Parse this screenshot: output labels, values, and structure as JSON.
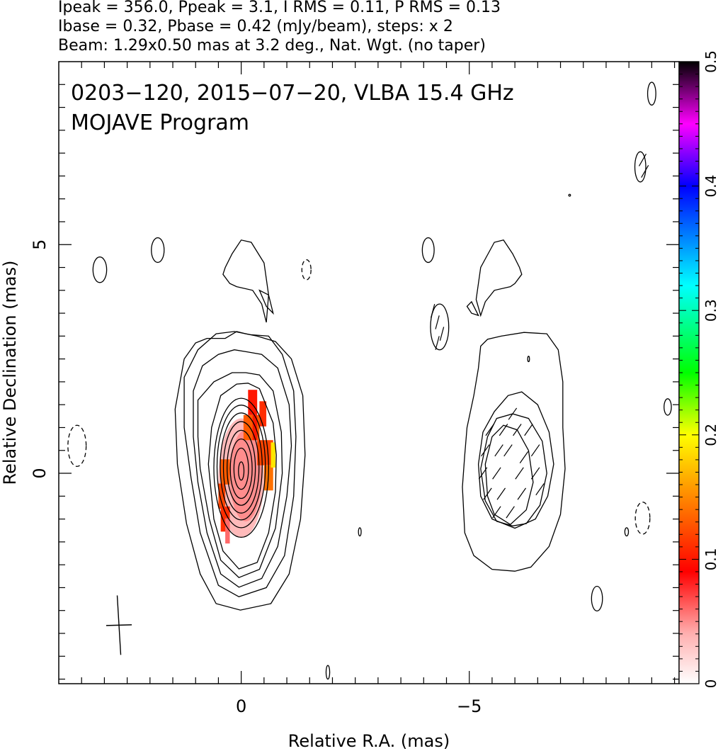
{
  "header": {
    "line1": "Ipeak = 356.0, Ppeak = 3.1, I RMS = 0.11, P RMS = 0.13",
    "line2": "Ibase = 0.32, Pbase = 0.42 (mJy/beam), steps: x 2",
    "line3": "Beam: 1.29x0.50 mas at 3.2 deg., Nat. Wgt. (no taper)"
  },
  "chart_data": {
    "type": "heatmap",
    "title_line1": "0203−120, 2015−07−20, VLBA 15.4 GHz",
    "title_line2": "MOJAVE Program",
    "xlabel": "Relative R.A. (mas)",
    "ylabel": "Relative Declination (mas)",
    "xlim": [
      4.0,
      -9.6
    ],
    "ylim": [
      -4.6,
      9.0
    ],
    "x_ticks": [
      {
        "v": 0,
        "label": "0"
      },
      {
        "v": -5,
        "label": "−5"
      }
    ],
    "y_ticks": [
      {
        "v": 0,
        "label": "0"
      },
      {
        "v": 5,
        "label": "5"
      }
    ],
    "colorbar": {
      "range": [
        0,
        0.5
      ],
      "ticks": [
        {
          "v": 0,
          "label": "0"
        },
        {
          "v": 0.1,
          "label": "0.1"
        },
        {
          "v": 0.2,
          "label": "0.2"
        },
        {
          "v": 0.3,
          "label": "0.3"
        },
        {
          "v": 0.4,
          "label": "0.4"
        },
        {
          "v": 0.5,
          "label": "0.5"
        }
      ],
      "stops": [
        {
          "v": 0.0,
          "color": "#ffffff"
        },
        {
          "v": 0.04,
          "color": "#ffb0b0"
        },
        {
          "v": 0.09,
          "color": "#ff0000"
        },
        {
          "v": 0.15,
          "color": "#ff8800"
        },
        {
          "v": 0.2,
          "color": "#ffff00"
        },
        {
          "v": 0.25,
          "color": "#00ff00"
        },
        {
          "v": 0.32,
          "color": "#00ffff"
        },
        {
          "v": 0.4,
          "color": "#0000ff"
        },
        {
          "v": 0.45,
          "color": "#ff00ff"
        },
        {
          "v": 0.5,
          "color": "#000000"
        }
      ]
    },
    "contours": {
      "core_ellipses": [
        {
          "cx": 0.0,
          "cy": 0.05,
          "rx": 0.06,
          "ry": 0.2
        },
        {
          "cx": 0.0,
          "cy": 0.1,
          "rx": 0.16,
          "ry": 0.45
        },
        {
          "cx": 0.0,
          "cy": 0.1,
          "rx": 0.24,
          "ry": 0.65
        },
        {
          "cx": 0.0,
          "cy": 0.12,
          "rx": 0.31,
          "ry": 0.82
        },
        {
          "cx": 0.0,
          "cy": 0.13,
          "rx": 0.39,
          "ry": 1.0
        },
        {
          "cx": 0.0,
          "cy": 0.15,
          "rx": 0.46,
          "ry": 1.17
        },
        {
          "cx": 0.0,
          "cy": 0.15,
          "rx": 0.53,
          "ry": 1.34
        },
        {
          "cx": 0.0,
          "cy": 0.12,
          "rx": 0.6,
          "ry": 1.52
        }
      ],
      "core_paths": [
        [
          [
            0.05,
            -2.09
          ],
          [
            -0.35,
            -1.95
          ],
          [
            -0.6,
            -1.3
          ],
          [
            -0.75,
            -0.4
          ],
          [
            -0.77,
            0.4
          ],
          [
            -0.7,
            1.1
          ],
          [
            -0.4,
            1.85
          ],
          [
            -0.15,
            1.97
          ],
          [
            0.1,
            1.95
          ],
          [
            0.45,
            1.7
          ],
          [
            0.65,
            1.0
          ],
          [
            0.72,
            0.2
          ],
          [
            0.6,
            -1.0
          ],
          [
            0.4,
            -1.7
          ],
          [
            0.05,
            -2.09
          ]
        ],
        [
          [
            0.05,
            -2.28
          ],
          [
            -0.4,
            -2.1
          ],
          [
            -0.75,
            -1.2
          ],
          [
            -0.9,
            0.0
          ],
          [
            -0.88,
            0.9
          ],
          [
            -0.7,
            1.8
          ],
          [
            -0.4,
            2.15
          ],
          [
            -0.1,
            2.2
          ],
          [
            0.2,
            2.2
          ],
          [
            0.6,
            2.0
          ],
          [
            0.95,
            1.6
          ],
          [
            0.95,
            0.8
          ],
          [
            0.9,
            0.1
          ],
          [
            0.7,
            -1.0
          ],
          [
            0.45,
            -1.9
          ],
          [
            0.05,
            -2.28
          ]
        ],
        [
          [
            0.05,
            -2.49
          ],
          [
            -0.45,
            -2.3
          ],
          [
            -0.8,
            -1.6
          ],
          [
            -1.0,
            -0.5
          ],
          [
            -1.1,
            0.6
          ],
          [
            -1.05,
            1.5
          ],
          [
            -0.8,
            2.3
          ],
          [
            -0.45,
            2.6
          ],
          [
            -0.15,
            2.65
          ],
          [
            0.15,
            2.7
          ],
          [
            0.5,
            2.6
          ],
          [
            0.85,
            2.35
          ],
          [
            1.05,
            1.8
          ],
          [
            1.05,
            0.8
          ],
          [
            0.95,
            -0.2
          ],
          [
            0.75,
            -1.3
          ],
          [
            0.45,
            -2.2
          ],
          [
            0.05,
            -2.49
          ]
        ],
        [
          [
            0.05,
            -2.7
          ],
          [
            -0.55,
            -2.5
          ],
          [
            -0.95,
            -1.8
          ],
          [
            -1.15,
            -0.5
          ],
          [
            -1.2,
            0.8
          ],
          [
            -1.15,
            1.8
          ],
          [
            -0.9,
            2.6
          ],
          [
            -0.6,
            3.0
          ],
          [
            -0.2,
            3.03
          ],
          [
            0.15,
            3.1
          ],
          [
            0.55,
            3.05
          ],
          [
            0.95,
            2.7
          ],
          [
            1.25,
            2.1
          ],
          [
            1.25,
            1.0
          ],
          [
            1.1,
            -0.1
          ],
          [
            0.9,
            -1.3
          ],
          [
            0.5,
            -2.45
          ],
          [
            0.05,
            -2.7
          ]
        ],
        [
          [
            0.02,
            -2.99
          ],
          [
            -0.65,
            -2.85
          ],
          [
            -1.05,
            -2.2
          ],
          [
            -1.3,
            -1.0
          ],
          [
            -1.4,
            0.4
          ],
          [
            -1.35,
            1.7
          ],
          [
            -1.1,
            2.5
          ],
          [
            -0.75,
            2.88
          ],
          [
            -0.35,
            3.0
          ],
          [
            -0.1,
            3.05
          ],
          [
            0.1,
            3.1
          ],
          [
            0.35,
            2.95
          ],
          [
            0.75,
            2.95
          ],
          [
            1.0,
            2.85
          ],
          [
            1.25,
            2.5
          ],
          [
            1.45,
            1.4
          ],
          [
            1.4,
            0.2
          ],
          [
            1.2,
            -1.1
          ],
          [
            0.9,
            -2.2
          ],
          [
            0.55,
            -2.85
          ],
          [
            0.02,
            -2.99
          ]
        ],
        [
          [
            0.1,
            4.08
          ],
          [
            -0.25,
            4.0
          ],
          [
            -0.45,
            3.7
          ],
          [
            -0.55,
            3.3
          ],
          [
            -0.6,
            3.9
          ],
          [
            -0.5,
            4.6
          ],
          [
            -0.22,
            5.05
          ],
          [
            0.0,
            5.1
          ],
          [
            0.2,
            4.8
          ],
          [
            0.35,
            4.5
          ],
          [
            0.4,
            4.35
          ],
          [
            0.25,
            4.15
          ],
          [
            0.1,
            4.08
          ]
        ],
        [
          [
            -0.4,
            4.0
          ],
          [
            -0.55,
            3.65
          ],
          [
            -0.7,
            3.5
          ],
          [
            -0.6,
            3.9
          ],
          [
            -0.4,
            4.0
          ]
        ]
      ],
      "jet_paths": [
        [
          [
            -5.9,
            -1.12
          ],
          [
            -5.55,
            -0.9
          ],
          [
            -5.4,
            -0.5
          ],
          [
            -5.35,
            0.2
          ],
          [
            -5.5,
            0.8
          ],
          [
            -5.75,
            1.05
          ],
          [
            -6.05,
            0.95
          ],
          [
            -6.3,
            0.5
          ],
          [
            -6.4,
            -0.2
          ],
          [
            -6.25,
            -0.8
          ],
          [
            -5.9,
            -1.12
          ]
        ],
        [
          [
            -5.95,
            -1.15
          ],
          [
            -6.25,
            -1.1
          ],
          [
            -6.55,
            -0.7
          ],
          [
            -6.7,
            0.0
          ],
          [
            -6.6,
            0.7
          ],
          [
            -6.3,
            1.2
          ],
          [
            -5.95,
            1.3
          ],
          [
            -5.6,
            1.2
          ],
          [
            -5.4,
            0.8
          ],
          [
            -5.25,
            0.1
          ],
          [
            -5.35,
            -0.6
          ],
          [
            -5.6,
            -1.05
          ],
          [
            -5.95,
            -1.15
          ]
        ],
        [
          [
            -6.0,
            -1.2
          ],
          [
            -6.45,
            -1.0
          ],
          [
            -6.72,
            -0.5
          ],
          [
            -6.85,
            0.2
          ],
          [
            -6.75,
            0.9
          ],
          [
            -6.5,
            1.5
          ],
          [
            -6.15,
            1.78
          ],
          [
            -5.85,
            1.7
          ],
          [
            -5.55,
            1.35
          ],
          [
            -5.3,
            0.9
          ],
          [
            -5.2,
            0.2
          ],
          [
            -5.25,
            -0.5
          ],
          [
            -5.5,
            -1.0
          ],
          [
            -6.0,
            -1.2
          ]
        ],
        [
          [
            -6.0,
            -2.14
          ],
          [
            -5.5,
            -2.1
          ],
          [
            -5.1,
            -1.8
          ],
          [
            -4.9,
            -1.3
          ],
          [
            -4.85,
            -0.3
          ],
          [
            -4.9,
            0.4
          ],
          [
            -4.95,
            1.0
          ],
          [
            -5.1,
            1.7
          ],
          [
            -5.2,
            2.3
          ],
          [
            -5.25,
            2.78
          ],
          [
            -5.4,
            2.93
          ],
          [
            -5.7,
            3.0
          ],
          [
            -6.2,
            3.08
          ],
          [
            -6.7,
            3.05
          ],
          [
            -6.95,
            2.7
          ],
          [
            -7.05,
            2.0
          ],
          [
            -7.05,
            1.0
          ],
          [
            -7.1,
            0.1
          ],
          [
            -7.0,
            -0.9
          ],
          [
            -6.75,
            -1.6
          ],
          [
            -6.35,
            -2.05
          ],
          [
            -6.0,
            -2.14
          ]
        ],
        [
          [
            -5.9,
            4.08
          ],
          [
            -5.55,
            4.0
          ],
          [
            -5.35,
            3.75
          ],
          [
            -5.25,
            3.45
          ],
          [
            -5.15,
            3.8
          ],
          [
            -5.25,
            4.5
          ],
          [
            -5.55,
            5.05
          ],
          [
            -5.75,
            5.1
          ],
          [
            -5.95,
            4.8
          ],
          [
            -6.1,
            4.5
          ],
          [
            -6.15,
            4.35
          ],
          [
            -6.0,
            4.15
          ],
          [
            -5.9,
            4.08
          ]
        ],
        [
          [
            -5.2,
            3.45
          ],
          [
            -5.05,
            3.75
          ],
          [
            -4.95,
            3.65
          ],
          [
            -5.05,
            3.5
          ],
          [
            -5.2,
            3.45
          ]
        ]
      ],
      "blobs": [
        {
          "cx": 3.1,
          "cy": 4.45,
          "rx": 0.15,
          "ry": 0.28,
          "dash": false
        },
        {
          "cx": 1.83,
          "cy": 4.88,
          "rx": 0.14,
          "ry": 0.27,
          "dash": false
        },
        {
          "cx": -4.1,
          "cy": 4.88,
          "rx": 0.13,
          "ry": 0.27,
          "dash": false
        },
        {
          "cx": -1.43,
          "cy": 4.45,
          "rx": 0.1,
          "ry": 0.22,
          "dash": true
        },
        {
          "cx": -4.35,
          "cy": 3.2,
          "rx": 0.2,
          "ry": 0.5,
          "dash": false
        },
        {
          "cx": 3.6,
          "cy": 0.6,
          "rx": 0.2,
          "ry": 0.45,
          "dash": true
        },
        {
          "cx": -9.0,
          "cy": 8.3,
          "rx": 0.09,
          "ry": 0.25,
          "dash": false
        },
        {
          "cx": -8.75,
          "cy": 6.7,
          "rx": 0.12,
          "ry": 0.33,
          "dash": false
        },
        {
          "cx": -9.35,
          "cy": 1.45,
          "rx": 0.08,
          "ry": 0.18,
          "dash": false
        },
        {
          "cx": -8.8,
          "cy": -0.98,
          "rx": 0.16,
          "ry": 0.35,
          "dash": true
        },
        {
          "cx": -8.45,
          "cy": -1.28,
          "rx": 0.04,
          "ry": 0.09,
          "dash": false
        },
        {
          "cx": -7.8,
          "cy": -2.74,
          "rx": 0.12,
          "ry": 0.27,
          "dash": false
        },
        {
          "cx": -2.6,
          "cy": -1.28,
          "rx": 0.03,
          "ry": 0.09,
          "dash": false
        },
        {
          "cx": -1.9,
          "cy": -4.35,
          "rx": 0.04,
          "ry": 0.15,
          "dash": false
        },
        {
          "cx": -6.3,
          "cy": 2.5,
          "rx": 0.02,
          "ry": 0.06,
          "dash": false
        },
        {
          "cx": -7.2,
          "cy": 6.08,
          "rx": 0.02,
          "ry": 0.02,
          "dash": false
        }
      ]
    },
    "polarization_pixels": [
      {
        "x": 0.45,
        "y": 0.03,
        "w": 0.2,
        "v": 0.13
      },
      {
        "x": 0.5,
        "y": -0.5,
        "w": 0.15,
        "v": 0.12
      },
      {
        "x": 0.45,
        "y": -1.0,
        "w": 0.2,
        "v": 0.11
      },
      {
        "x": 0.35,
        "y": -1.26,
        "w": 0.1,
        "v": 0.06
      },
      {
        "x": -0.05,
        "y": 1.0,
        "w": 0.35,
        "v": 0.13
      },
      {
        "x": -0.25,
        "y": 1.0,
        "w": 0.1,
        "v": 0.1
      },
      {
        "x": -0.35,
        "y": 0.45,
        "w": 0.35,
        "v": 0.12
      },
      {
        "x": -0.5,
        "y": -0.1,
        "w": 0.2,
        "v": 0.14
      },
      {
        "x": -0.65,
        "y": 0.4,
        "w": 0.1,
        "v": 0.19
      },
      {
        "x": -0.15,
        "y": 1.55,
        "w": 0.2,
        "v": 0.1
      },
      {
        "x": -0.4,
        "y": 1.3,
        "w": 0.15,
        "v": 0.11
      }
    ],
    "pol_ticks": [
      {
        "x": -4.2,
        "y": 3.55,
        "a": 75
      },
      {
        "x": -4.3,
        "y": 3.3,
        "a": 75
      },
      {
        "x": -4.4,
        "y": 3.05,
        "a": 75
      },
      {
        "x": -4.3,
        "y": 2.85,
        "a": 75
      },
      {
        "x": -8.85,
        "y": 6.6,
        "a": 60
      },
      {
        "x": -8.8,
        "y": 6.85,
        "a": 60
      },
      {
        "x": -5.45,
        "y": 0.95,
        "a": 55
      },
      {
        "x": -5.75,
        "y": 0.95,
        "a": 55
      },
      {
        "x": -6.05,
        "y": 0.95,
        "a": 55
      },
      {
        "x": -6.3,
        "y": 0.95,
        "a": 55
      },
      {
        "x": -5.35,
        "y": 0.5,
        "a": 55
      },
      {
        "x": -5.65,
        "y": 0.5,
        "a": 55
      },
      {
        "x": -6.45,
        "y": 0.5,
        "a": 55
      },
      {
        "x": -5.3,
        "y": 0.0,
        "a": 55
      },
      {
        "x": -5.6,
        "y": 0.0,
        "a": 55
      },
      {
        "x": -6.1,
        "y": 0.0,
        "a": 55
      },
      {
        "x": -6.45,
        "y": 0.0,
        "a": 55
      },
      {
        "x": -5.4,
        "y": -0.45,
        "a": 55
      },
      {
        "x": -5.7,
        "y": -0.45,
        "a": 55
      },
      {
        "x": -6.15,
        "y": -0.45,
        "a": 55
      },
      {
        "x": -5.6,
        "y": -0.85,
        "a": 55
      },
      {
        "x": -5.9,
        "y": -0.85,
        "a": 55
      },
      {
        "x": -5.85,
        "y": 0.5,
        "a": 55
      },
      {
        "x": -6.55,
        "y": -0.35,
        "a": 55
      },
      {
        "x": -5.95,
        "y": 1.3,
        "a": 55
      },
      {
        "x": -6.2,
        "y": 0.35,
        "a": 55
      }
    ],
    "beam_marker": {
      "cx": 2.68,
      "cy": -3.32,
      "dx": 0.28,
      "dy": 0.65
    }
  }
}
